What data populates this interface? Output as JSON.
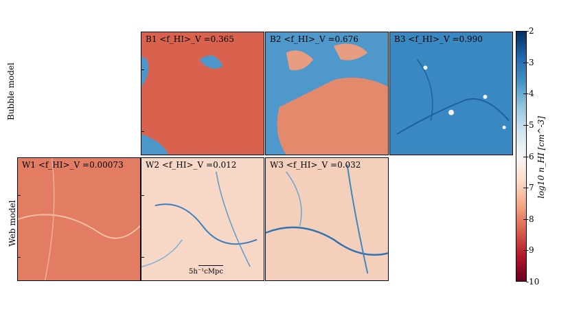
{
  "rows": {
    "bubble_label": "Bubble model",
    "web_label": "Web model"
  },
  "panels": [
    {
      "id": "B1",
      "label": "B1 <f_HI>_V =0.365",
      "color": "#d2604f"
    },
    {
      "id": "B2",
      "label": "B2 <f_HI>_V =0.676",
      "color": "#e4846a"
    },
    {
      "id": "B3",
      "label": "B3 <f_HI>_V =0.990",
      "color": "#3f8dc5"
    },
    {
      "id": "W1",
      "label": "W1 <f_HI>_V =0.00073",
      "color": "#e37f66"
    },
    {
      "id": "W2",
      "label": "W2 <f_HI>_V =0.012",
      "color": "#f7d9c9"
    },
    {
      "id": "W3",
      "label": "W3 <f_HI>_V =0.032",
      "color": "#f5d2bf"
    }
  ],
  "scalebar": {
    "label": "5h⁻¹cMpc"
  },
  "colorbar": {
    "label": "log10 n_HI [cm^-3]",
    "ticks": [
      "-2",
      "-3",
      "-4",
      "-5",
      "-6",
      "-7",
      "-8",
      "-9",
      "-10"
    ],
    "range": [
      -10,
      -2
    ],
    "colormap": "RdBu",
    "colors": [
      "#67001f",
      "#b2182b",
      "#d6604d",
      "#f4a582",
      "#fddbc7",
      "#f7f7f7",
      "#d1e5f0",
      "#92c5de",
      "#4393c3",
      "#2166ac",
      "#053061"
    ]
  },
  "chart_data": {
    "type": "heatmap",
    "title": "",
    "xlabel": "",
    "ylabel": "",
    "panels": [
      {
        "id": "B1",
        "row": "Bubble model",
        "f_HI_V": 0.365
      },
      {
        "id": "B2",
        "row": "Bubble model",
        "f_HI_V": 0.676
      },
      {
        "id": "B3",
        "row": "Bubble model",
        "f_HI_V": 0.99
      },
      {
        "id": "W1",
        "row": "Web model",
        "f_HI_V": 0.00073
      },
      {
        "id": "W2",
        "row": "Web model",
        "f_HI_V": 0.012
      },
      {
        "id": "W3",
        "row": "Web model",
        "f_HI_V": 0.032
      }
    ],
    "colorbar": {
      "min": -10,
      "max": -2,
      "ticks": [
        -2,
        -3,
        -4,
        -5,
        -6,
        -7,
        -8,
        -9,
        -10
      ]
    }
  }
}
